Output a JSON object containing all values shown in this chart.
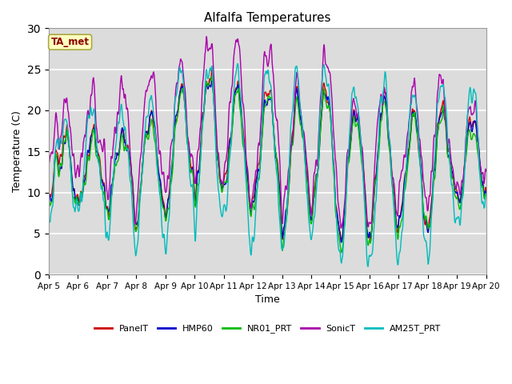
{
  "title": "Alfalfa Temperatures",
  "xlabel": "Time",
  "ylabel": "Temperature (C)",
  "ylim": [
    0,
    30
  ],
  "yticks": [
    0,
    5,
    10,
    15,
    20,
    25,
    30
  ],
  "date_labels": [
    "Apr 5",
    "Apr 6",
    "Apr 7",
    "Apr 8",
    "Apr 9",
    "Apr 10",
    "Apr 11",
    "Apr 12",
    "Apr 13",
    "Apr 14",
    "Apr 15",
    "Apr 16",
    "Apr 17",
    "Apr 18",
    "Apr 19",
    "Apr 20"
  ],
  "annotation_text": "TA_met",
  "annotation_color": "#8B0000",
  "annotation_bg": "#FFFFC0",
  "bg_inner": "#DCDCDC",
  "bg_outer": "#FFFFFF",
  "lines": {
    "PanelT": {
      "color": "#CC0000",
      "lw": 1.0
    },
    "HMP60": {
      "color": "#0000CC",
      "lw": 1.0
    },
    "NR01_PRT": {
      "color": "#00BB00",
      "lw": 1.0
    },
    "SonicT": {
      "color": "#AA00AA",
      "lw": 1.0
    },
    "AM25T_PRT": {
      "color": "#00BBBB",
      "lw": 1.0
    }
  },
  "n_points": 1440,
  "figsize": [
    6.4,
    4.8
  ],
  "dpi": 100
}
